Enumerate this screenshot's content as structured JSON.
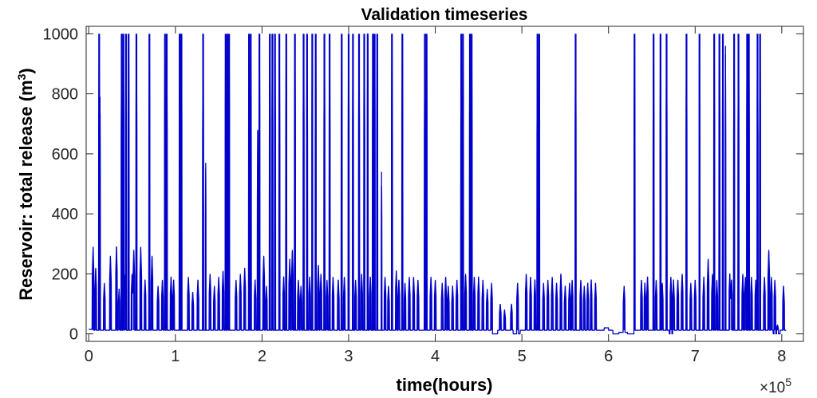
{
  "chart_data": {
    "type": "line",
    "title": "Validation timeseries",
    "xlabel": "time(hours)",
    "ylabel_main": "Reservoir: total release (m",
    "ylabel_sup": "3",
    "ylabel_close": ")",
    "x_exponent_base": "×10",
    "x_exponent_power": "5",
    "xlim": [
      -0.03,
      8.25
    ],
    "ylim": [
      -25,
      1025
    ],
    "x_ticks": [
      0,
      1,
      2,
      3,
      4,
      5,
      6,
      7,
      8
    ],
    "x_tick_labels": [
      "0",
      "1",
      "2",
      "3",
      "4",
      "5",
      "6",
      "7",
      "8"
    ],
    "y_ticks": [
      0,
      200,
      400,
      600,
      800,
      1000
    ],
    "y_tick_labels": [
      "0",
      "200",
      "400",
      "600",
      "800",
      "1000"
    ],
    "x_unit_scale": 100000,
    "series": [
      {
        "color": "#0000cc",
        "baseline": 12,
        "x_end": 8.05,
        "peaks_1000": [
          0.12,
          0.38,
          0.4,
          0.43,
          0.46,
          0.55,
          0.7,
          0.88,
          0.9,
          1.05,
          1.07,
          1.32,
          1.58,
          1.6,
          1.62,
          1.85,
          1.87,
          1.97,
          2.09,
          2.12,
          2.15,
          2.2,
          2.28,
          2.38,
          2.48,
          2.52,
          2.58,
          2.62,
          2.72,
          2.78,
          2.92,
          3.0,
          3.05,
          3.12,
          3.18,
          3.22,
          3.28,
          3.3,
          3.33,
          3.5,
          3.62,
          3.88,
          3.9,
          4.3,
          4.32,
          4.4,
          4.42,
          5.18,
          5.2,
          5.62,
          6.3,
          6.52,
          6.6,
          6.67,
          6.9,
          7.22,
          7.28,
          7.32,
          7.45,
          7.5,
          7.6,
          7.62,
          7.72,
          7.75
        ],
        "peaks_mid": [
          [
            0.13,
            790
          ],
          [
            1.05,
            1000
          ],
          [
            1.35,
            570
          ],
          [
            1.95,
            680
          ],
          [
            3.38,
            540
          ],
          [
            7.05,
            1000
          ],
          [
            7.35,
            960
          ]
        ],
        "peaks_small": [
          [
            0.05,
            290
          ],
          [
            0.08,
            220
          ],
          [
            0.18,
            170
          ],
          [
            0.25,
            260
          ],
          [
            0.32,
            290
          ],
          [
            0.35,
            150
          ],
          [
            0.42,
            200
          ],
          [
            0.5,
            200
          ],
          [
            0.52,
            280
          ],
          [
            0.6,
            290
          ],
          [
            0.65,
            180
          ],
          [
            0.73,
            260
          ],
          [
            0.8,
            160
          ],
          [
            0.85,
            180
          ],
          [
            0.95,
            190
          ],
          [
            0.98,
            180
          ],
          [
            1.15,
            190
          ],
          [
            1.2,
            140
          ],
          [
            1.26,
            180
          ],
          [
            1.4,
            200
          ],
          [
            1.45,
            160
          ],
          [
            1.5,
            190
          ],
          [
            1.55,
            210
          ],
          [
            1.7,
            180
          ],
          [
            1.75,
            200
          ],
          [
            1.8,
            220
          ],
          [
            1.92,
            180
          ],
          [
            2.02,
            260
          ],
          [
            2.05,
            160
          ],
          [
            2.25,
            190
          ],
          [
            2.32,
            250
          ],
          [
            2.35,
            280
          ],
          [
            2.42,
            180
          ],
          [
            2.45,
            160
          ],
          [
            2.55,
            190
          ],
          [
            2.65,
            230
          ],
          [
            2.68,
            200
          ],
          [
            2.75,
            180
          ],
          [
            2.82,
            190
          ],
          [
            2.88,
            180
          ],
          [
            2.95,
            190
          ],
          [
            3.08,
            180
          ],
          [
            3.15,
            200
          ],
          [
            3.25,
            190
          ],
          [
            3.42,
            190
          ],
          [
            3.46,
            160
          ],
          [
            3.55,
            210
          ],
          [
            3.58,
            180
          ],
          [
            3.65,
            170
          ],
          [
            3.7,
            190
          ],
          [
            3.75,
            190
          ],
          [
            3.8,
            180
          ],
          [
            3.95,
            190
          ],
          [
            4.0,
            180
          ],
          [
            4.08,
            170
          ],
          [
            4.12,
            190
          ],
          [
            4.15,
            160
          ],
          [
            4.2,
            160
          ],
          [
            4.25,
            180
          ],
          [
            4.35,
            200
          ],
          [
            4.45,
            190
          ],
          [
            4.5,
            190
          ],
          [
            4.55,
            180
          ],
          [
            4.6,
            150
          ],
          [
            4.65,
            170
          ],
          [
            4.75,
            100
          ],
          [
            4.8,
            80
          ],
          [
            4.88,
            100
          ],
          [
            4.95,
            170
          ],
          [
            5.05,
            200
          ],
          [
            5.1,
            190
          ],
          [
            5.15,
            180
          ],
          [
            5.25,
            170
          ],
          [
            5.3,
            180
          ],
          [
            5.35,
            190
          ],
          [
            5.4,
            170
          ],
          [
            5.45,
            200
          ],
          [
            5.5,
            160
          ],
          [
            5.55,
            170
          ],
          [
            5.58,
            180
          ],
          [
            5.68,
            180
          ],
          [
            5.72,
            160
          ],
          [
            5.76,
            170
          ],
          [
            5.8,
            180
          ],
          [
            5.85,
            170
          ],
          [
            6.18,
            160
          ],
          [
            6.38,
            180
          ],
          [
            6.42,
            170
          ],
          [
            6.45,
            190
          ],
          [
            6.55,
            180
          ],
          [
            6.62,
            170
          ],
          [
            6.72,
            190
          ],
          [
            6.75,
            180
          ],
          [
            6.8,
            180
          ],
          [
            6.85,
            200
          ],
          [
            6.95,
            170
          ],
          [
            7.0,
            180
          ],
          [
            7.1,
            190
          ],
          [
            7.15,
            250
          ],
          [
            7.2,
            200
          ],
          [
            7.25,
            180
          ],
          [
            7.4,
            200
          ],
          [
            7.42,
            180
          ],
          [
            7.55,
            200
          ],
          [
            7.58,
            190
          ],
          [
            7.65,
            190
          ],
          [
            7.7,
            180
          ],
          [
            7.8,
            190
          ],
          [
            7.85,
            280
          ],
          [
            7.88,
            190
          ],
          [
            7.92,
            180
          ],
          [
            7.95,
            30
          ],
          [
            8.02,
            160
          ]
        ],
        "low_segments": [
          [
            0.0,
            0.05,
            15
          ],
          [
            4.65,
            4.72,
            0
          ],
          [
            4.9,
            4.98,
            0
          ],
          [
            5.95,
            6.0,
            20
          ],
          [
            6.05,
            6.12,
            0
          ],
          [
            6.12,
            6.22,
            5
          ],
          [
            6.22,
            6.3,
            0
          ],
          [
            6.7,
            6.75,
            0
          ],
          [
            7.9,
            7.98,
            0
          ]
        ]
      }
    ]
  }
}
